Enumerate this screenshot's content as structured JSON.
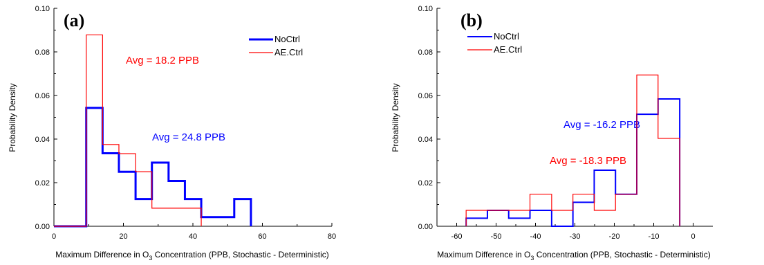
{
  "chart_data": [
    {
      "type": "histogram",
      "panel_label": "(a)",
      "xlabel_pre": "Maximum Difference in O",
      "xlabel_sub": "3",
      "xlabel_post": " Concentration (PPB, Stochastic - Deterministic)",
      "ylabel": "Probability Density",
      "xlim": [
        0,
        80
      ],
      "ylim": [
        0,
        0.1
      ],
      "xticks": [
        "0",
        "20",
        "40",
        "60",
        "80"
      ],
      "yticks": [
        "0.00",
        "0.02",
        "0.04",
        "0.06",
        "0.08",
        "0.10"
      ],
      "legend": {
        "position": "top-right",
        "entries": [
          "NoCtrl",
          "AE.Ctrl"
        ]
      },
      "series": [
        {
          "name": "NoCtrl",
          "color": "#0000ff",
          "edges": [
            0,
            9.3,
            14,
            18.7,
            23.5,
            28.2,
            33,
            37.7,
            42.4,
            47.2,
            51.9,
            56.7
          ],
          "values": [
            0,
            0.0543,
            0.0335,
            0.025,
            0.0125,
            0.0292,
            0.0208,
            0.0125,
            0.0042,
            0.0042,
            0.0125
          ]
        },
        {
          "name": "AE.Ctrl",
          "color": "#ff0000",
          "edges": [
            0,
            9.3,
            14,
            18.7,
            23.5,
            28.2,
            33,
            37.7,
            42.4
          ],
          "values": [
            0,
            0.0878,
            0.0375,
            0.0333,
            0.025,
            0.0083,
            0.0083,
            0.0083
          ]
        }
      ],
      "annotations": [
        {
          "text": "Avg = 18.2 PPB",
          "color": "#ff0000"
        },
        {
          "text": "Avg = 24.8 PPB",
          "color": "#0000ff"
        }
      ]
    },
    {
      "type": "histogram",
      "panel_label": "(b)",
      "xlabel_pre": "Maximum Difference in O",
      "xlabel_sub": "3",
      "xlabel_post": " Concentration (PPB, Stochastic - Deterministic)",
      "ylabel": "Probability Density",
      "xlim": [
        -65,
        5
      ],
      "ylim": [
        0,
        0.1
      ],
      "xticks": [
        "-60",
        "-50",
        "-40",
        "-30",
        "-20",
        "-10",
        "0"
      ],
      "yticks": [
        "0.00",
        "0.02",
        "0.04",
        "0.06",
        "0.08",
        "0.10"
      ],
      "legend": {
        "position": "top-left",
        "entries": [
          "NoCtrl",
          "AE.Ctrl"
        ]
      },
      "series": [
        {
          "name": "NoCtrl",
          "color": "#0000ff",
          "edges": [
            -57.6,
            -52.2,
            -46.8,
            -41.4,
            -35.9,
            -30.5,
            -25.1,
            -19.7,
            -14.3,
            -8.9,
            -3.4
          ],
          "values": [
            0.0037,
            0.0073,
            0.0037,
            0.0073,
            0,
            0.011,
            0.0257,
            0.0147,
            0.0514,
            0.0584
          ]
        },
        {
          "name": "AE.Ctrl",
          "color": "#ff0000",
          "edges": [
            -57.6,
            -52.2,
            -46.8,
            -41.4,
            -35.9,
            -30.5,
            -25.1,
            -19.7,
            -14.3,
            -8.9,
            -3.4
          ],
          "values": [
            0.0073,
            0.0073,
            0.0073,
            0.0147,
            0.0073,
            0.0147,
            0.0073,
            0.0147,
            0.0694,
            0.0403
          ]
        }
      ],
      "annotations": [
        {
          "text": "Avg = -16.2 PPB",
          "color": "#0000ff"
        },
        {
          "text": "Avg = -18.3 PPB",
          "color": "#ff0000"
        }
      ]
    }
  ]
}
